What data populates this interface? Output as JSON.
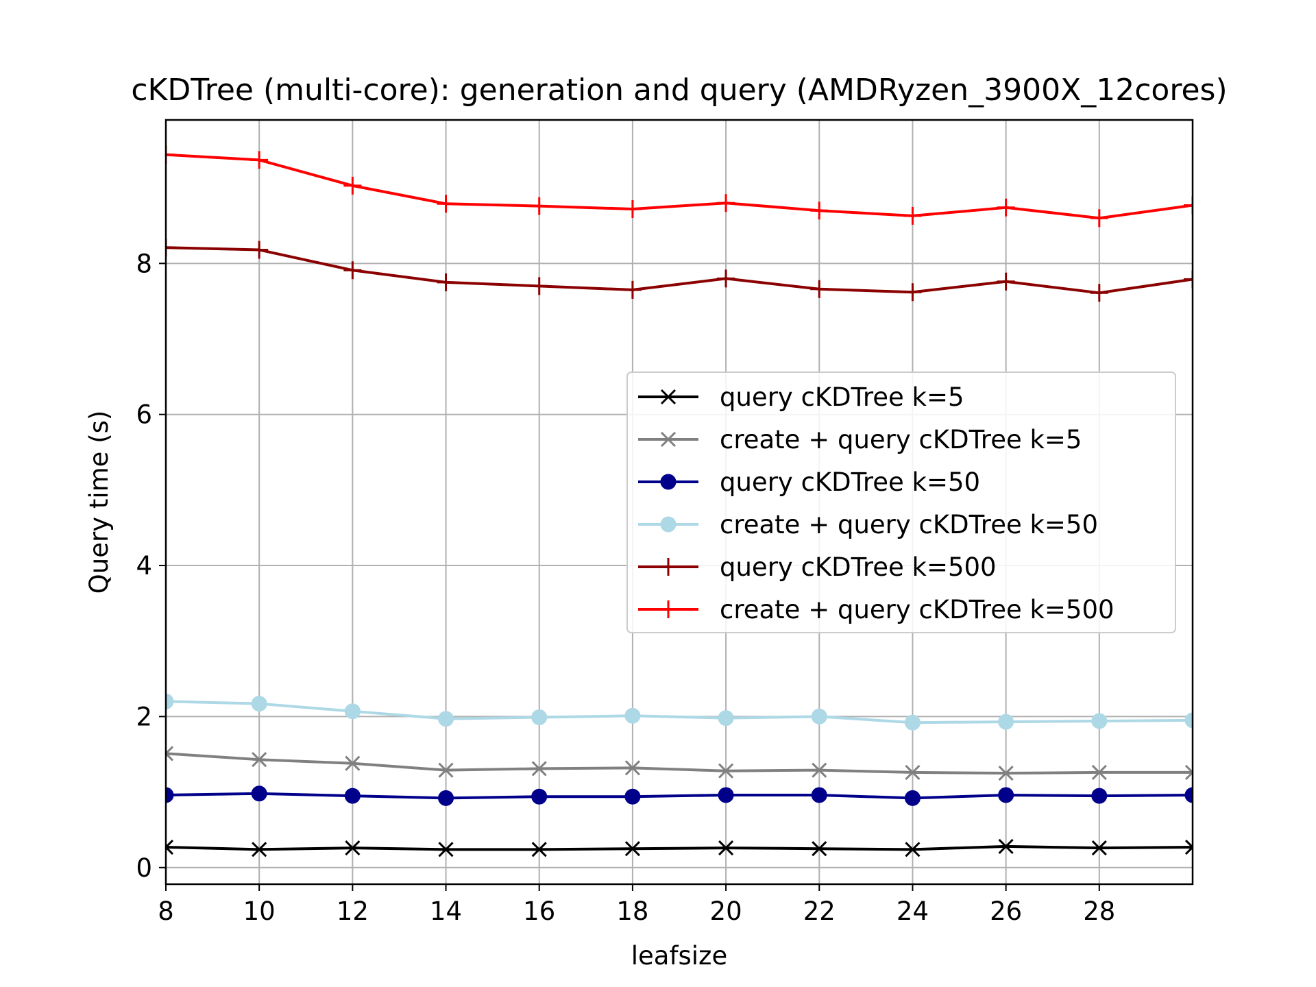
{
  "chart_data": {
    "type": "line",
    "title": "cKDTree (multi-core): generation and query (AMDRyzen_3900X_12cores)",
    "xlabel": "leafsize",
    "ylabel": "Query time (s)",
    "x": [
      8,
      10,
      12,
      14,
      16,
      18,
      20,
      22,
      24,
      26,
      28,
      30
    ],
    "xlim": [
      8,
      30
    ],
    "ylim": [
      -0.22,
      9.9
    ],
    "xticks": [
      8,
      10,
      12,
      14,
      16,
      18,
      20,
      22,
      24,
      26,
      28
    ],
    "yticks": [
      0,
      2,
      4,
      6,
      8
    ],
    "grid": true,
    "legend_position": "center-right",
    "series": [
      {
        "name": "query cKDTree k=5",
        "color": "#000000",
        "marker": "x",
        "values": [
          0.27,
          0.24,
          0.26,
          0.24,
          0.24,
          0.25,
          0.26,
          0.25,
          0.24,
          0.28,
          0.26,
          0.27
        ]
      },
      {
        "name": "create + query cKDTree k=5",
        "color": "#808080",
        "marker": "x",
        "values": [
          1.51,
          1.43,
          1.38,
          1.29,
          1.31,
          1.32,
          1.28,
          1.29,
          1.26,
          1.25,
          1.26,
          1.26
        ]
      },
      {
        "name": "query cKDTree k=50",
        "color": "#00008b",
        "marker": "o",
        "values": [
          0.96,
          0.98,
          0.95,
          0.92,
          0.94,
          0.94,
          0.96,
          0.96,
          0.92,
          0.96,
          0.95,
          0.96
        ]
      },
      {
        "name": "create + query cKDTree k=50",
        "color": "#add8e6",
        "marker": "o",
        "values": [
          2.2,
          2.17,
          2.07,
          1.97,
          1.99,
          2.01,
          1.98,
          2.0,
          1.92,
          1.93,
          1.94,
          1.95
        ]
      },
      {
        "name": "query cKDTree k=500",
        "color": "#8b0000",
        "marker": "+",
        "values": [
          8.21,
          8.18,
          7.91,
          7.75,
          7.7,
          7.65,
          7.8,
          7.66,
          7.62,
          7.76,
          7.61,
          7.79
        ]
      },
      {
        "name": "create + query cKDTree k=500",
        "color": "#ff0000",
        "marker": "+",
        "values": [
          9.44,
          9.37,
          9.03,
          8.79,
          8.76,
          8.72,
          8.8,
          8.7,
          8.63,
          8.74,
          8.6,
          8.77
        ]
      }
    ]
  }
}
